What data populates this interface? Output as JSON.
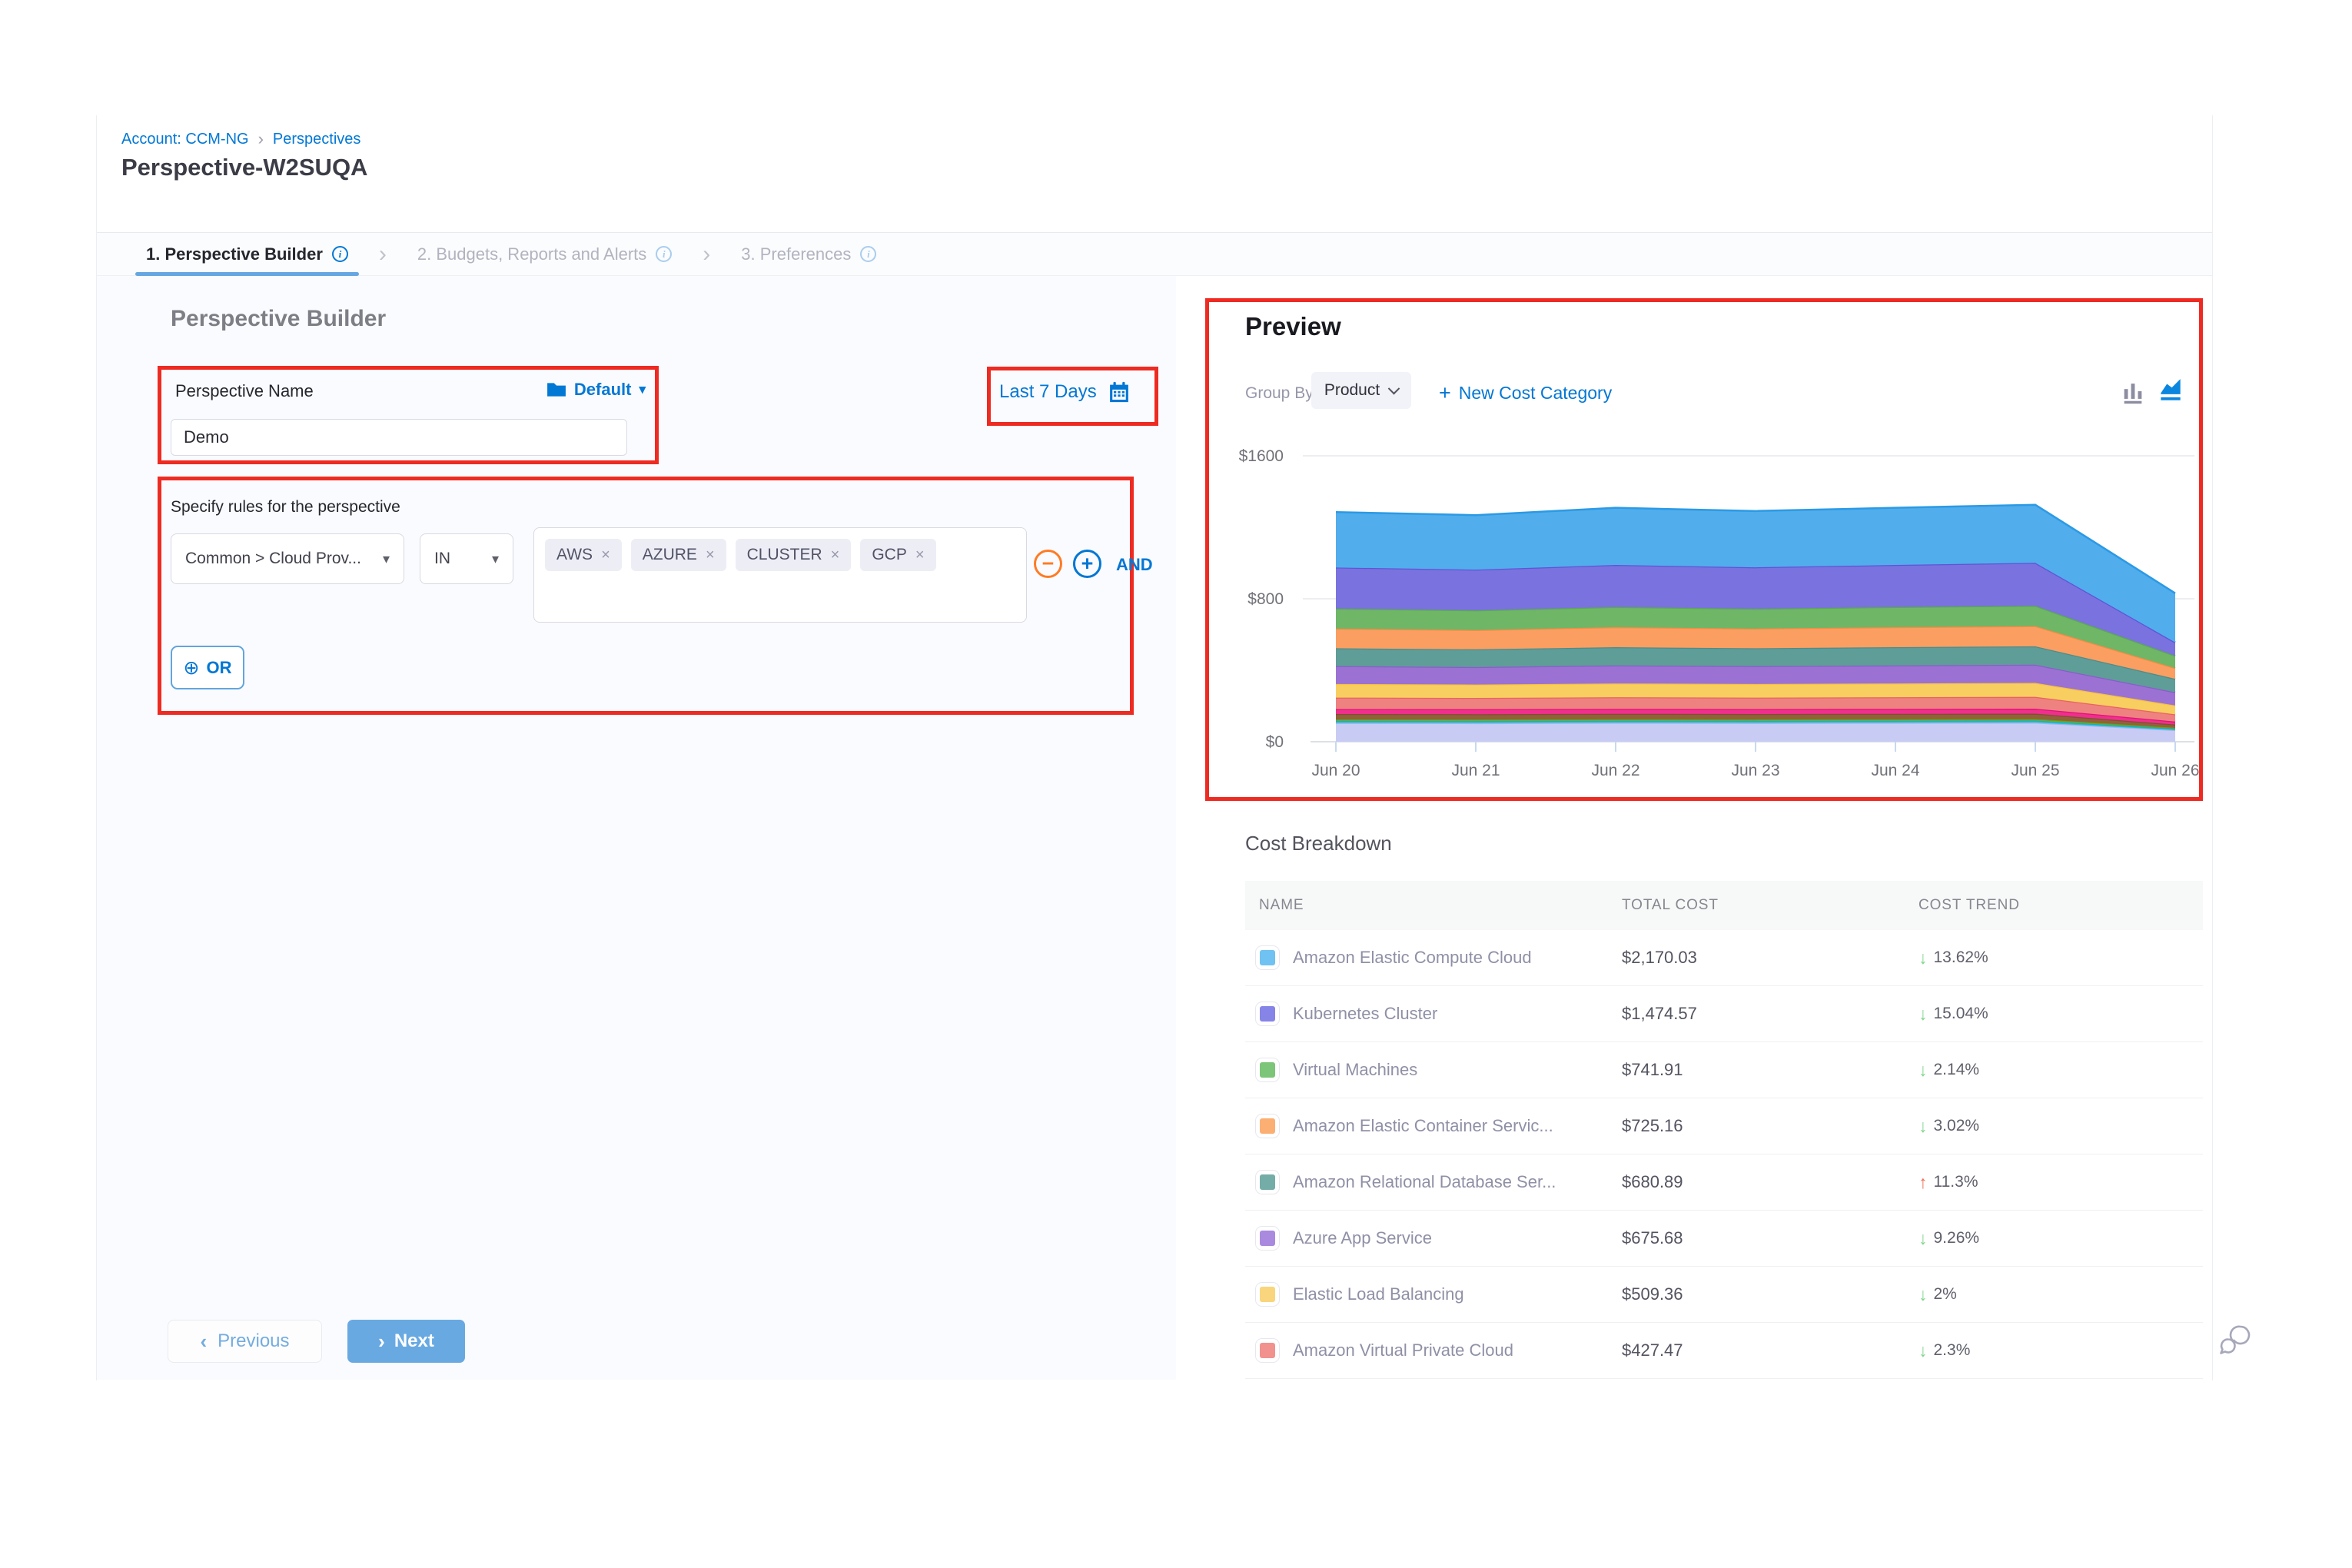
{
  "breadcrumb": {
    "account": "Account: CCM-NG",
    "section": "Perspectives"
  },
  "page_title": "Perspective-W2SUQA",
  "tabs": [
    {
      "label": "1. Perspective Builder",
      "active": true
    },
    {
      "label": "2. Budgets, Reports and Alerts",
      "active": false
    },
    {
      "label": "3. Preferences",
      "active": false
    }
  ],
  "builder": {
    "heading": "Perspective Builder",
    "name_label": "Perspective Name",
    "folder_value": "Default",
    "name_value": "Demo",
    "date_range": "Last 7 Days",
    "rules_label": "Specify rules for the perspective",
    "rule": {
      "field": "Common > Cloud Prov...",
      "operator": "IN",
      "values": [
        "AWS",
        "AZURE",
        "CLUSTER",
        "GCP"
      ]
    },
    "and_label": "AND",
    "or_label": "OR",
    "previous_label": "Previous",
    "next_label": "Next"
  },
  "preview": {
    "title": "Preview",
    "group_by_label": "Group By",
    "group_by_value": "Product",
    "new_cost_category_label": "New Cost Category"
  },
  "chart_data": {
    "type": "area",
    "stacked": true,
    "title": "Preview cost over time, grouped by Product",
    "x": [
      "Jun 20",
      "Jun 21",
      "Jun 22",
      "Jun 23",
      "Jun 24",
      "Jun 25",
      "Jun 26"
    ],
    "ylim": [
      0,
      1600
    ],
    "yticks": [
      {
        "label": "$0",
        "value": 0
      },
      {
        "label": "$800",
        "value": 800
      },
      {
        "label": "$1600",
        "value": 1600
      }
    ],
    "grid": true,
    "legend": false,
    "series": [
      {
        "name": "unlabeled-lavender",
        "color": "#c8ccf4",
        "line": "#aab1ee",
        "values": [
          105,
          104,
          106,
          105,
          106,
          107,
          65
        ]
      },
      {
        "name": "unlabeled-cyan",
        "color": "#2ec0d0",
        "line": "#0fb2c4",
        "values": [
          12,
          12,
          12,
          12,
          12,
          12,
          8
        ]
      },
      {
        "name": "unlabeled-olive",
        "color": "#7fb521",
        "line": "#6da010",
        "values": [
          8,
          8,
          8,
          8,
          8,
          8,
          5
        ]
      },
      {
        "name": "unlabeled-brown",
        "color": "#93603c",
        "line": "#7e4f2e",
        "values": [
          30,
          30,
          30,
          30,
          30,
          30,
          18
        ]
      },
      {
        "name": "unlabeled-pink",
        "color": "#ef2f8d",
        "line": "#e01277",
        "values": [
          28,
          28,
          28,
          28,
          28,
          28,
          17
        ]
      },
      {
        "name": "Amazon Virtual Private Cloud",
        "color": "#ee8280",
        "line": "#e96361",
        "values": [
          64,
          63,
          65,
          64,
          65,
          66,
          40
        ]
      },
      {
        "name": "Elastic Load Balancing",
        "color": "#f9ce61",
        "line": "#f6c23c",
        "values": [
          76,
          75,
          77,
          76,
          77,
          78,
          50
        ]
      },
      {
        "name": "Azure App Service",
        "color": "#9b72d3",
        "line": "#8a5cc9",
        "values": [
          100,
          98,
          101,
          100,
          101,
          102,
          74
        ]
      },
      {
        "name": "Amazon Relational Database Service",
        "color": "#5f9d99",
        "line": "#4e8c88",
        "values": [
          100,
          99,
          102,
          100,
          102,
          103,
          75
        ]
      },
      {
        "name": "Amazon Elastic Container Service",
        "color": "#fb9e62",
        "line": "#fa8a41",
        "values": [
          110,
          108,
          112,
          110,
          112,
          113,
          60
        ]
      },
      {
        "name": "Virtual Machines",
        "color": "#6fb667",
        "line": "#5aa853",
        "values": [
          112,
          110,
          113,
          111,
          113,
          114,
          69
        ]
      },
      {
        "name": "Kubernetes Cluster",
        "color": "#7a72de",
        "line": "#5e54d6",
        "values": [
          230,
          228,
          235,
          232,
          235,
          240,
          75
        ]
      },
      {
        "name": "Amazon Elastic Compute Cloud",
        "color": "#51adec",
        "line": "#2b9ae5",
        "values": [
          310,
          305,
          320,
          315,
          320,
          325,
          275
        ]
      }
    ]
  },
  "cost_breakdown": {
    "title": "Cost Breakdown",
    "columns": [
      "NAME",
      "TOTAL COST",
      "COST TREND"
    ],
    "rows": [
      {
        "name": "Amazon Elastic Compute Cloud",
        "swatch": "#6fc2f2",
        "total": "$2,170.03",
        "trend": "13.62%",
        "direction": "down"
      },
      {
        "name": "Kubernetes Cluster",
        "swatch": "#8784e8",
        "total": "$1,474.57",
        "trend": "15.04%",
        "direction": "down"
      },
      {
        "name": "Virtual Machines",
        "swatch": "#7cc579",
        "total": "$741.91",
        "trend": "2.14%",
        "direction": "down"
      },
      {
        "name": "Amazon Elastic Container Servic...",
        "swatch": "#fcaf73",
        "total": "$725.16",
        "trend": "3.02%",
        "direction": "down"
      },
      {
        "name": "Amazon Relational Database Ser...",
        "swatch": "#74aca8",
        "total": "$680.89",
        "trend": "11.3%",
        "direction": "up"
      },
      {
        "name": "Azure App Service",
        "swatch": "#a98ade",
        "total": "$675.68",
        "trend": "9.26%",
        "direction": "down"
      },
      {
        "name": "Elastic Load Balancing",
        "swatch": "#f9d57e",
        "total": "$509.36",
        "trend": "2%",
        "direction": "down"
      },
      {
        "name": "Amazon Virtual Private Cloud",
        "swatch": "#f2928f",
        "total": "$427.47",
        "trend": "2.3%",
        "direction": "down"
      }
    ]
  },
  "icons": {
    "chevron_right": "›",
    "chevron_left": "‹",
    "caret_down": "▾",
    "close": "×",
    "minus": "−",
    "plus": "+",
    "circle_plus": "⊕",
    "trend_up": "↑",
    "trend_down": "↓"
  },
  "colors": {
    "annotation_red": "#ee2b22",
    "link_blue": "#0277d4",
    "active_tab_underline": "#66a7e1",
    "next_button_bg": "#69a9e2",
    "trend_up_red": "#ef6d56",
    "trend_down_green": "#7fd78c"
  }
}
